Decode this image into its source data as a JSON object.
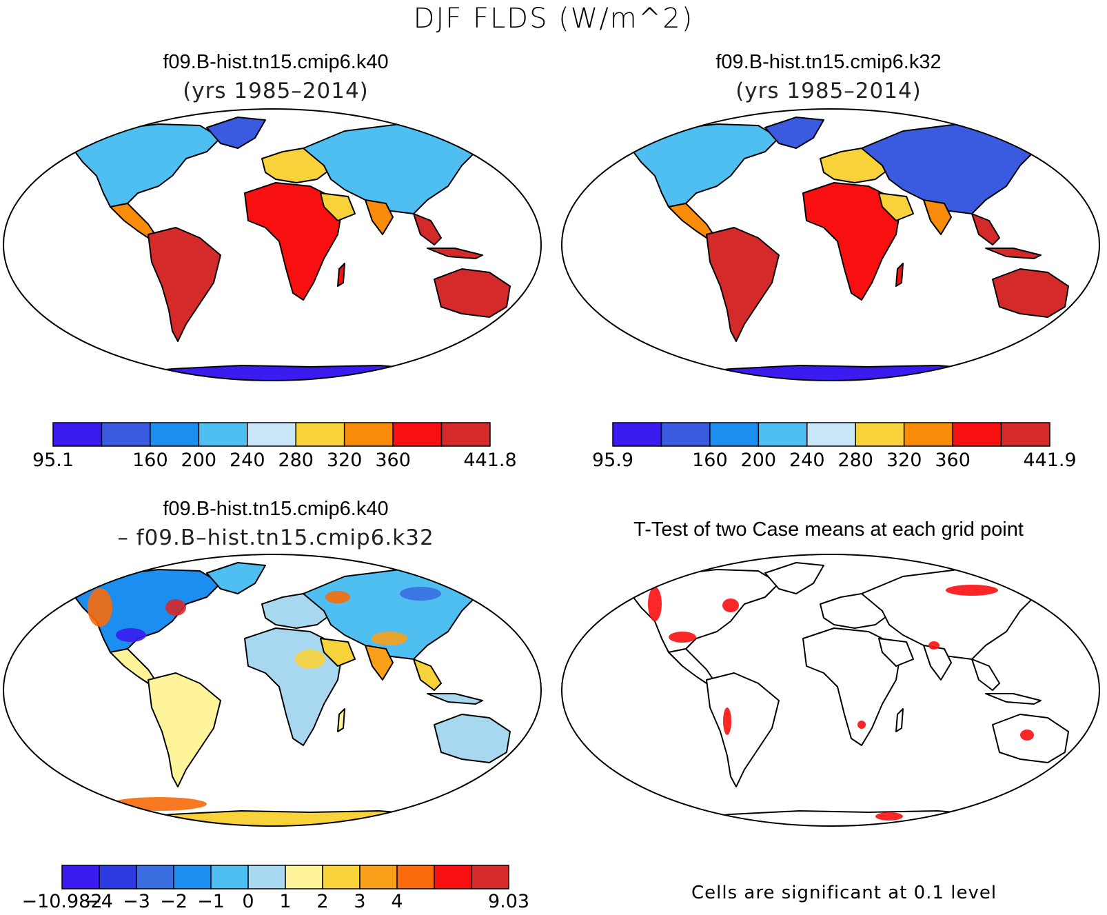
{
  "main_title": "DJF FLDS (W/m^2)",
  "panels": [
    {
      "title": "f09.B-hist.tn15.cmip6.k40",
      "subtitle": "(yrs 1985–2014)",
      "colorbar": {
        "colors": [
          "#3a1cf0",
          "#3a5ae0",
          "#1c8ef0",
          "#4fbef0",
          "#c8e6f8",
          "#f8d23a",
          "#f88c0a",
          "#f81010",
          "#d42a2a"
        ],
        "labels": [
          "95.1",
          "",
          "160",
          "200",
          "240",
          "280",
          "320",
          "360",
          "",
          "441.8"
        ]
      }
    },
    {
      "title": "f09.B-hist.tn15.cmip6.k32",
      "subtitle": "(yrs 1985–2014)",
      "colorbar": {
        "colors": [
          "#3a1cf0",
          "#3a5ae0",
          "#1c8ef0",
          "#4fbef0",
          "#c8e6f8",
          "#f8d23a",
          "#f88c0a",
          "#f81010",
          "#d42a2a"
        ],
        "labels": [
          "95.9",
          "",
          "160",
          "200",
          "240",
          "280",
          "320",
          "360",
          "",
          "441.9"
        ]
      }
    },
    {
      "title": "f09.B-hist.tn15.cmip6.k40",
      "subtitle": "– f09.B–hist.tn15.cmip6.k32",
      "colorbar": {
        "colors": [
          "#3a1cf0",
          "#2a3ae0",
          "#3a6ee0",
          "#1c8ef0",
          "#4fbef0",
          "#a8d8f0",
          "#fff49a",
          "#f8d23a",
          "#f8a01a",
          "#f86a0a",
          "#f81010",
          "#d42a2a"
        ],
        "labels": [
          "−10.982",
          "−4",
          "−3",
          "−2",
          "−1",
          "0",
          "1",
          "2",
          "3",
          "4",
          "",
          "",
          "9.03"
        ]
      }
    },
    {
      "title": "T-Test of two Case means at each grid point",
      "subtitle": "",
      "note": "Cells are significant at 0.1 level"
    }
  ]
}
